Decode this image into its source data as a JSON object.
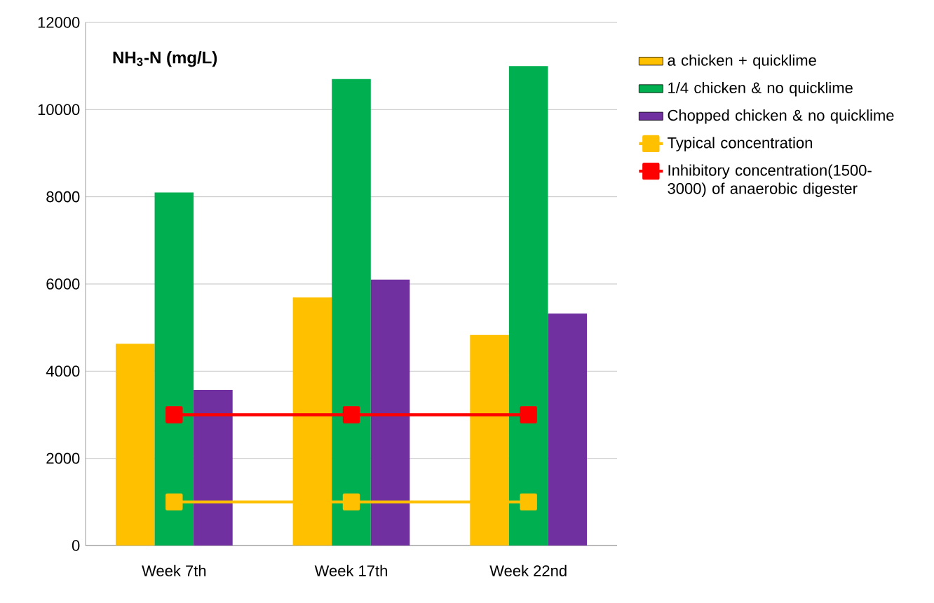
{
  "chart_data": {
    "type": "bar",
    "ylabel": "NH$_{3}$-N (mg/L)",
    "categories": [
      "Week 7th",
      "Week 17th",
      "Week 22nd"
    ],
    "series": [
      {
        "name": "a chicken + quicklime",
        "color": "#ffc000",
        "values": [
          4630,
          5690,
          4830
        ]
      },
      {
        "name": "1/4 chicken & no quicklime",
        "color": "#00b050",
        "values": [
          8100,
          10700,
          11000
        ]
      },
      {
        "name": "Chopped chicken & no quicklime",
        "color": "#7030a0",
        "values": [
          3570,
          6100,
          5320
        ]
      },
      {
        "name": "Typical concentration",
        "type": "line",
        "color": "#ffc000",
        "marker": "square",
        "values": [
          1000,
          1000,
          1000
        ]
      },
      {
        "name": "Inhibitory concentration(1500-3000) of anaerobic digester",
        "type": "line",
        "color": "#ff0000",
        "marker": "square",
        "values": [
          3000,
          3000,
          3000
        ]
      }
    ],
    "ylim": [
      0,
      12000
    ],
    "yticks": [
      0,
      2000,
      4000,
      6000,
      8000,
      10000,
      12000
    ],
    "grid": "y",
    "legend": "right"
  }
}
